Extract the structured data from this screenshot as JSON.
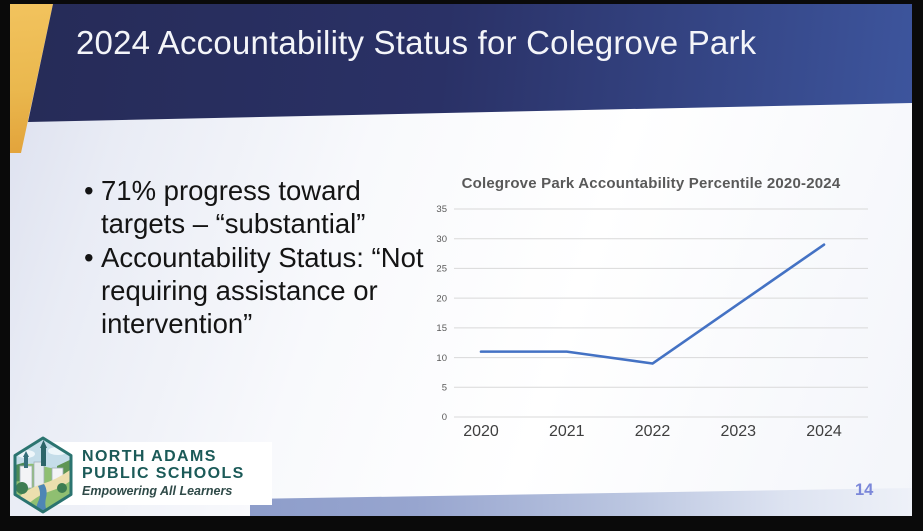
{
  "header": {
    "title": "2024 Accountability Status for Colegrove Park"
  },
  "bullets": [
    "71% progress toward targets – “substantial”",
    "Accountability Status: “Not requiring assistance or intervention”"
  ],
  "chart_data": {
    "type": "line",
    "title": "Colegrove Park Accountability Percentile 2020-2024",
    "categories": [
      "2020",
      "2021",
      "2022",
      "2023",
      "2024"
    ],
    "values": [
      11,
      11,
      9,
      19,
      29
    ],
    "xlabel": "",
    "ylabel": "",
    "ylim": [
      0,
      35
    ],
    "ytick_step": 5,
    "grid": true,
    "legend": false,
    "line_color": "#4472c4",
    "gridline_color": "#d9d9d9"
  },
  "logo": {
    "icon": "hexagon-cityscape-icon",
    "name_line1": "NORTH ADAMS",
    "name_line2": "PUBLIC SCHOOLS",
    "tagline": "Empowering All Learners"
  },
  "footer": {
    "page_number": "14"
  },
  "colors": {
    "header_navy": "#2a3166",
    "header_navy_right": "#3d559d",
    "gold_accent": "#eab84e",
    "bottom_wedge_blue": "#8092c3",
    "logo_teal": "#1b5a58",
    "page_number_blue": "#7b87d9",
    "chart_line_blue": "#4472c4"
  }
}
